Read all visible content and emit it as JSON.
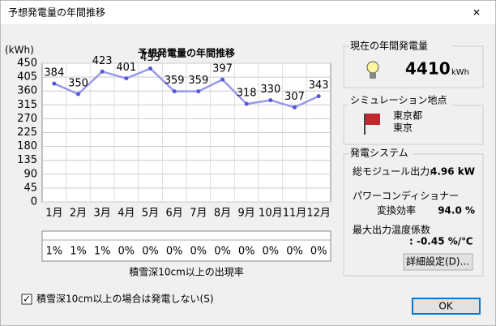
{
  "window": {
    "title": "予想発電量の年間推移",
    "close": "✕"
  },
  "chart_data": {
    "type": "line",
    "title": "予想発電量の年間推移",
    "y_label": "(kWh)",
    "categories": [
      "1月",
      "2月",
      "3月",
      "4月",
      "5月",
      "6月",
      "7月",
      "8月",
      "9月",
      "10月",
      "11月",
      "12月"
    ],
    "values": [
      384,
      350,
      423,
      401,
      433,
      359,
      359,
      397,
      318,
      330,
      307,
      343
    ],
    "color": "#9999ee",
    "marker_color": "#5555dd",
    "ylim": [
      0,
      450
    ],
    "yticks": [
      0,
      45,
      90,
      135,
      180,
      225,
      270,
      315,
      360,
      405,
      450
    ],
    "grid": true
  },
  "snow": {
    "rates": [
      "1%",
      "1%",
      "1%",
      "0%",
      "0%",
      "0%",
      "0%",
      "0%",
      "0%",
      "0%",
      "0%",
      "0%"
    ],
    "caption": "積雪深10cm以上の出現率"
  },
  "checkbox": {
    "label": "積雪深10cm以上の場合は発電しない(S)",
    "mark": "✓"
  },
  "annual": {
    "title": "現在の年間発電量",
    "value": "4410",
    "unit": "kWh"
  },
  "location": {
    "title": "シミュレーション地点",
    "prefecture": "東京都",
    "city": "東京"
  },
  "system": {
    "title": "発電システム",
    "module_label": "総モジュール出力:",
    "module_value": "4.96 kW",
    "pc_label": "パワーコンディショナー",
    "eff_label": "変換効率",
    "eff_value": "94.0 %",
    "temp_label": "最大出力温度係数",
    "temp_value": ":  -0.45 %/℃",
    "button": "詳細設定(D)..."
  },
  "ok": "OK"
}
